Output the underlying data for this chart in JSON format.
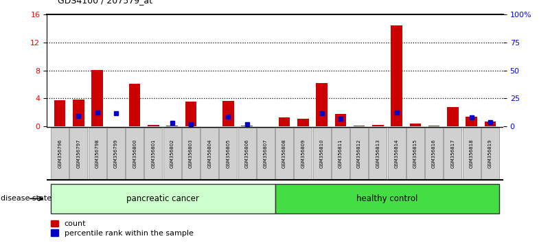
{
  "title": "GDS4100 / 207579_at",
  "samples": [
    "GSM356796",
    "GSM356797",
    "GSM356798",
    "GSM356799",
    "GSM356800",
    "GSM356801",
    "GSM356802",
    "GSM356803",
    "GSM356804",
    "GSM356805",
    "GSM356806",
    "GSM356807",
    "GSM356808",
    "GSM356809",
    "GSM356810",
    "GSM356811",
    "GSM356812",
    "GSM356813",
    "GSM356814",
    "GSM356815",
    "GSM356816",
    "GSM356817",
    "GSM356818",
    "GSM356819"
  ],
  "count_values": [
    3.7,
    3.8,
    8.1,
    0.0,
    6.1,
    0.2,
    0.1,
    3.5,
    0.05,
    3.6,
    0.1,
    0.05,
    1.3,
    1.1,
    6.2,
    1.8,
    0.1,
    0.2,
    14.5,
    0.4,
    0.1,
    2.8,
    1.4,
    0.7
  ],
  "percentile_values": [
    null,
    9.0,
    12.1,
    11.7,
    null,
    null,
    3.3,
    1.6,
    null,
    8.7,
    1.6,
    null,
    null,
    null,
    12.0,
    6.5,
    null,
    null,
    12.2,
    null,
    null,
    null,
    7.9,
    3.6
  ],
  "disease_groups": [
    {
      "label": "pancreatic cancer",
      "start": 0,
      "end": 11,
      "color_light": "#ccffcc",
      "color_dark": "#44cc44"
    },
    {
      "label": "healthy control",
      "start": 12,
      "end": 23,
      "color_light": "#44cc44",
      "color_dark": "#44cc44"
    }
  ],
  "ylim_left": [
    0,
    16
  ],
  "ylim_right": [
    0,
    100
  ],
  "yticks_left": [
    0,
    4,
    8,
    12,
    16
  ],
  "yticks_right": [
    0,
    25,
    50,
    75,
    100
  ],
  "ytick_labels_right": [
    "0",
    "25",
    "50",
    "75",
    "100%"
  ],
  "bar_color": "#cc0000",
  "dot_color": "#0000cc",
  "panel_color": "#d0d0d0"
}
